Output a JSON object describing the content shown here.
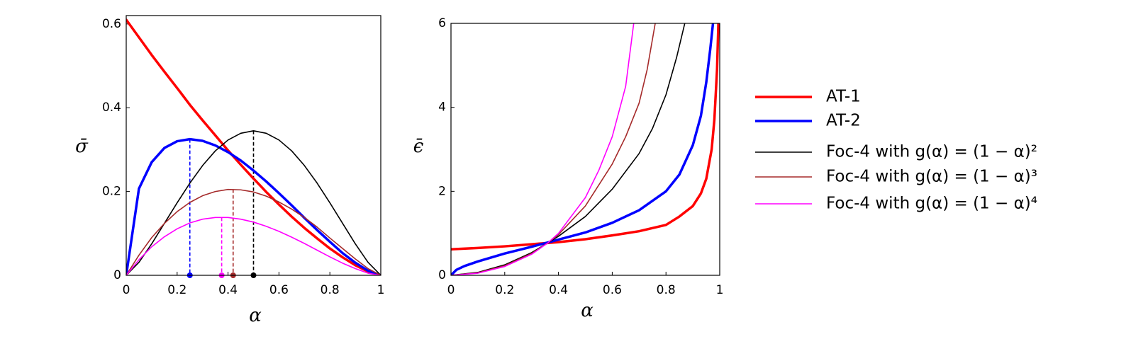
{
  "chart_data": [
    {
      "type": "line",
      "x_label": "α",
      "y_label": "σ̄",
      "xlim": [
        0,
        1
      ],
      "ylim": [
        0,
        0.62
      ],
      "xticks": [
        0,
        0.2,
        0.4,
        0.6,
        0.8,
        1
      ],
      "yticks": [
        0,
        0.2,
        0.4,
        0.6
      ],
      "legend": "right",
      "x": [
        0,
        0.05,
        0.1,
        0.15,
        0.2,
        0.25,
        0.3,
        0.35,
        0.4,
        0.45,
        0.5,
        0.55,
        0.6,
        0.65,
        0.7,
        0.75,
        0.8,
        0.85,
        0.9,
        0.95,
        1
      ],
      "series": [
        {
          "name": "AT-1",
          "color": "#ff0000",
          "linewidth": 3.5,
          "values": [
            0.61,
            0.568,
            0.526,
            0.486,
            0.447,
            0.407,
            0.37,
            0.334,
            0.298,
            0.264,
            0.231,
            0.199,
            0.169,
            0.14,
            0.113,
            0.088,
            0.064,
            0.043,
            0.024,
            0.009,
            0
          ]
        },
        {
          "name": "AT-2",
          "color": "#0000ff",
          "linewidth": 3.5,
          "peak": {
            "x": 0.25,
            "y": 0.325
          },
          "values": [
            0,
            0.207,
            0.27,
            0.304,
            0.32,
            0.325,
            0.321,
            0.31,
            0.294,
            0.274,
            0.25,
            0.224,
            0.196,
            0.167,
            0.137,
            0.108,
            0.08,
            0.053,
            0.03,
            0.011,
            0
          ]
        },
        {
          "name": "Foc-4 with g(α) = (1 − α)²",
          "color": "#000000",
          "linewidth": 1.6,
          "peak": {
            "x": 0.5,
            "y": 0.345
          },
          "values": [
            0,
            0.031,
            0.075,
            0.124,
            0.173,
            0.22,
            0.262,
            0.297,
            0.323,
            0.339,
            0.345,
            0.339,
            0.323,
            0.297,
            0.262,
            0.22,
            0.173,
            0.124,
            0.075,
            0.031,
            0
          ]
        },
        {
          "name": "Foc-4 with g(α) = (1 − α)³",
          "color": "#a52a2a",
          "linewidth": 1.6,
          "peak": {
            "x": 0.42,
            "y": 0.205
          },
          "values": [
            0,
            0.048,
            0.09,
            0.124,
            0.152,
            0.174,
            0.19,
            0.2,
            0.205,
            0.204,
            0.199,
            0.189,
            0.175,
            0.158,
            0.138,
            0.115,
            0.089,
            0.064,
            0.039,
            0.016,
            0
          ]
        },
        {
          "name": "Foc-4 with g(α) = (1 − α)⁴",
          "color": "#ff00ff",
          "linewidth": 1.6,
          "peak": {
            "x": 0.375,
            "y": 0.138
          },
          "values": [
            0,
            0.037,
            0.068,
            0.092,
            0.111,
            0.125,
            0.134,
            0.138,
            0.138,
            0.134,
            0.127,
            0.117,
            0.105,
            0.091,
            0.076,
            0.06,
            0.044,
            0.029,
            0.016,
            0.005,
            0
          ]
        }
      ]
    },
    {
      "type": "line",
      "x_label": "α",
      "y_label": "ϵ̄",
      "xlim": [
        0,
        1
      ],
      "ylim": [
        0,
        6
      ],
      "xticks": [
        0,
        0.2,
        0.4,
        0.6,
        0.8,
        1
      ],
      "yticks": [
        0,
        2,
        4,
        6
      ],
      "series": [
        {
          "color": "#ff0000",
          "linewidth": 3.5,
          "x": [
            0,
            0.1,
            0.2,
            0.3,
            0.4,
            0.5,
            0.6,
            0.7,
            0.8,
            0.85,
            0.9,
            0.93,
            0.95,
            0.97,
            0.98,
            0.99,
            0.995
          ],
          "values": [
            0.62,
            0.65,
            0.69,
            0.74,
            0.79,
            0.86,
            0.95,
            1.05,
            1.2,
            1.4,
            1.65,
            1.95,
            2.3,
            3.0,
            3.7,
            4.9,
            6
          ]
        },
        {
          "color": "#0000ff",
          "linewidth": 3.5,
          "x": [
            0,
            0.02,
            0.05,
            0.1,
            0.2,
            0.3,
            0.4,
            0.5,
            0.6,
            0.7,
            0.8,
            0.85,
            0.9,
            0.93,
            0.95,
            0.965,
            0.975
          ],
          "values": [
            0,
            0.13,
            0.22,
            0.33,
            0.52,
            0.68,
            0.85,
            1.02,
            1.25,
            1.55,
            2.0,
            2.4,
            3.1,
            3.8,
            4.6,
            5.4,
            6
          ]
        },
        {
          "color": "#000000",
          "linewidth": 1.6,
          "x": [
            0,
            0.1,
            0.2,
            0.3,
            0.36,
            0.4,
            0.5,
            0.6,
            0.7,
            0.75,
            0.8,
            0.84,
            0.87
          ],
          "values": [
            0,
            0.07,
            0.25,
            0.54,
            0.77,
            0.93,
            1.4,
            2.05,
            2.9,
            3.5,
            4.3,
            5.2,
            6
          ]
        },
        {
          "color": "#a52a2a",
          "linewidth": 1.6,
          "x": [
            0,
            0.1,
            0.2,
            0.3,
            0.36,
            0.4,
            0.5,
            0.6,
            0.65,
            0.7,
            0.73,
            0.76
          ],
          "values": [
            0,
            0.06,
            0.23,
            0.52,
            0.77,
            0.97,
            1.65,
            2.65,
            3.3,
            4.1,
            4.9,
            6
          ]
        },
        {
          "color": "#ff00ff",
          "linewidth": 1.6,
          "x": [
            0,
            0.1,
            0.2,
            0.3,
            0.36,
            0.4,
            0.5,
            0.55,
            0.6,
            0.65,
            0.68
          ],
          "values": [
            0,
            0.05,
            0.21,
            0.5,
            0.77,
            1.0,
            1.85,
            2.5,
            3.3,
            4.5,
            6
          ]
        }
      ]
    }
  ]
}
